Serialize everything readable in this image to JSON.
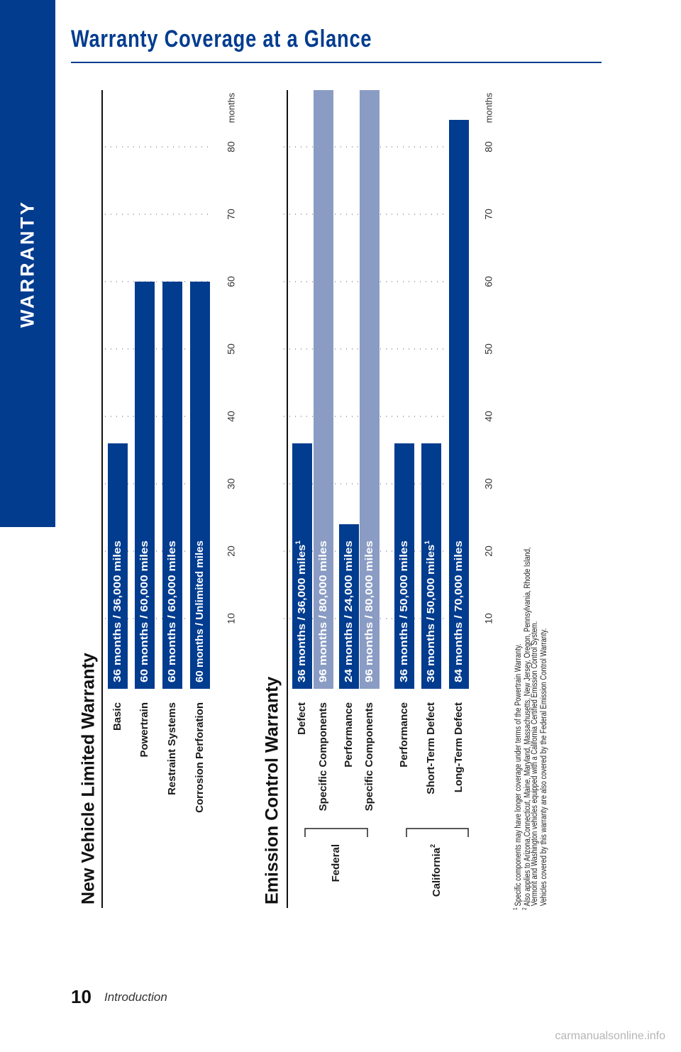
{
  "side_tab": {
    "label": "WARRANTY"
  },
  "page_title": "Warranty Coverage at a Glance",
  "page_number": "10",
  "section_name": "Introduction",
  "watermark": "carmanualsonline.info",
  "colors": {
    "primary": "#023c8f",
    "secondary": "#8a9cc4",
    "text": "#1a1a1a"
  },
  "chart_data": [
    {
      "type": "bar",
      "orientation": "rotated-90-ccw",
      "title": "New Vehicle Limited Warranty",
      "axis": {
        "ticks": [
          10,
          20,
          30,
          40,
          50,
          60,
          70,
          80
        ],
        "unit_label": "months",
        "max": 90,
        "grid": "dotted"
      },
      "bars": [
        {
          "label": "Basic",
          "months": 36,
          "text": "36 months  /  36,000 miles",
          "sup": "",
          "color": "primary"
        },
        {
          "label": "Powertrain",
          "months": 60,
          "text": "60 months  /  60,000 miles",
          "sup": "",
          "color": "primary"
        },
        {
          "label": "Restraint Systems",
          "months": 60,
          "text": "60 months  /  60,000 miles",
          "sup": "",
          "color": "primary"
        },
        {
          "label": "Corrosion Perforation",
          "months": 60,
          "text": "60 months  /  Unlimited miles",
          "sup": "",
          "color": "primary"
        }
      ]
    },
    {
      "type": "bar",
      "orientation": "rotated-90-ccw",
      "title": "Emission Control Warranty",
      "axis": {
        "ticks": [
          10,
          20,
          30,
          40,
          50,
          60,
          70,
          80
        ],
        "unit_label": "months",
        "max": 90,
        "grid": "dotted"
      },
      "groups": [
        {
          "label": "Federal",
          "sup": ""
        },
        {
          "label": "California",
          "sup": "2"
        }
      ],
      "bars": [
        {
          "label": "Defect",
          "months": 36,
          "text": "36 months  /  36,000 miles",
          "sup": "1",
          "color": "primary",
          "group": 0
        },
        {
          "label": "Specific Components",
          "months": 96,
          "text": "96 months  /  80,000 miles",
          "sup": "",
          "color": "secondary",
          "group": 0
        },
        {
          "label": "Performance",
          "months": 24,
          "text": "24 months  /  24,000 miles",
          "sup": "",
          "color": "primary",
          "group": 0
        },
        {
          "label": "Specific Components",
          "months": 96,
          "text": "96 months  /  80,000 miles",
          "sup": "",
          "color": "secondary",
          "group": 0
        },
        {
          "label": "Performance",
          "months": 36,
          "text": "36 months  /  50,000 miles",
          "sup": "",
          "color": "primary",
          "group": 1
        },
        {
          "label": "Short-Term Defect",
          "months": 36,
          "text": "36 months  /  50,000 miles",
          "sup": "1",
          "color": "primary",
          "group": 1
        },
        {
          "label": "Long-Term Defect",
          "months": 84,
          "text": "84 months  /  70,000 miles",
          "sup": "",
          "color": "primary",
          "group": 1
        }
      ]
    }
  ],
  "footnotes": [
    {
      "mark": "1",
      "text": "Specific components may have longer coverage under terms of the Powertrain Warranty."
    },
    {
      "mark": "2",
      "text": "Also applies to Arizona,Connecticut, Maine, Maryland, Massachusetts, New Jersey, Oregon, Pennsylvania, Rhode Island,"
    },
    {
      "mark": "",
      "text": "Vermont and Washington vehicles equipped with a California Certified Emission Control System."
    },
    {
      "mark": "",
      "text": "Vehicles covered by this warranty are also covered by the Federal Emission Control Warranty."
    }
  ]
}
